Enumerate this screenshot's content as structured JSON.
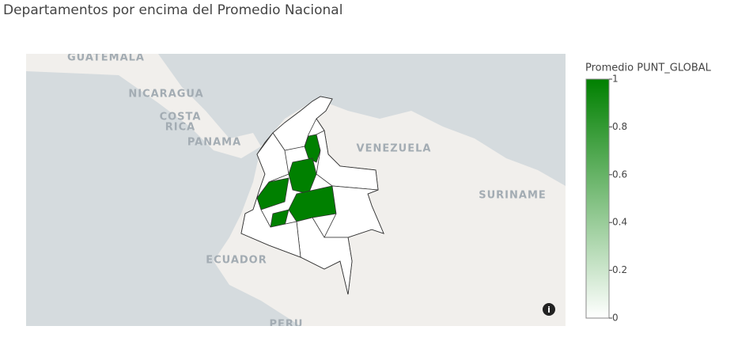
{
  "title": "Departamentos por encima del Promedio Nacional",
  "map": {
    "place_labels": [
      "GUATEMALA",
      "NICARAGUA",
      "COSTA",
      "RICA",
      "PANAMA",
      "VENEZUELA",
      "SURINAME",
      "ECUADOR",
      "PERU"
    ],
    "region_values": [
      1,
      1,
      1,
      1,
      1,
      0,
      0,
      0,
      0,
      0
    ],
    "colorbar": {
      "title": "Promedio PUNT_GLOBAL",
      "range": [
        0,
        1
      ],
      "ticks": [
        0,
        0.2,
        0.4,
        0.6,
        0.8,
        1
      ],
      "color_low": "#ffffff",
      "color_high": "#008000"
    }
  }
}
